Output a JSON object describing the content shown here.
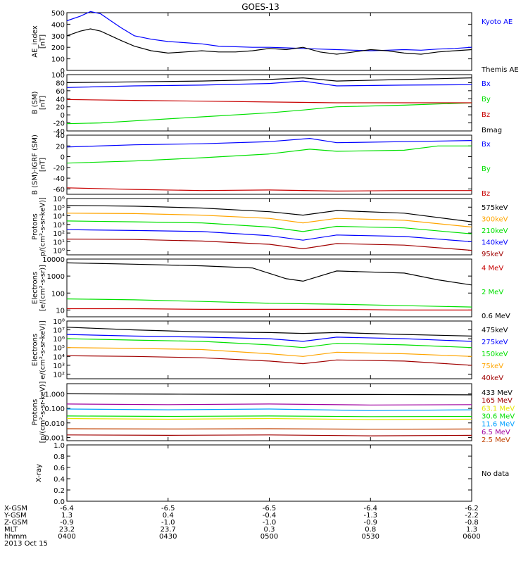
{
  "title": "GOES-13",
  "colors": {
    "black": "#000000",
    "blue": "#0000ff",
    "green": "#00e000",
    "red": "#c80000",
    "orange": "#ffa500",
    "dark_red": "#a00000",
    "yellow": "#e6e600",
    "cyan": "#00a0ff",
    "magenta": "#a000a0",
    "brown": "#c04000"
  },
  "chart_data": [
    {
      "type": "line",
      "id": "ae",
      "ylabel_lines": [
        "AE_index",
        "[nT]"
      ],
      "ylim": [
        0,
        500
      ],
      "log": false,
      "yticks": [
        0,
        100,
        200,
        300,
        400,
        500
      ],
      "ytick_labels": [
        "0",
        "100",
        "200",
        "300",
        "400",
        "500"
      ],
      "series": [
        {
          "name": "Kyoto AE",
          "color": "#0000ff",
          "x": [
            0,
            4,
            7,
            10,
            13,
            16,
            20,
            25,
            30,
            35,
            40,
            45,
            50,
            55,
            60,
            65,
            70,
            75,
            80,
            85,
            90,
            95,
            100,
            105,
            110,
            115,
            120
          ],
          "y": [
            430,
            470,
            510,
            490,
            430,
            370,
            300,
            270,
            250,
            240,
            230,
            210,
            205,
            200,
            200,
            195,
            190,
            185,
            180,
            175,
            170,
            175,
            180,
            175,
            185,
            190,
            200
          ]
        },
        {
          "name": "Themis AE",
          "color": "#000000",
          "x": [
            0,
            4,
            7,
            10,
            13,
            16,
            20,
            25,
            30,
            35,
            40,
            45,
            50,
            55,
            60,
            65,
            70,
            75,
            80,
            85,
            90,
            95,
            100,
            105,
            110,
            115,
            120
          ],
          "y": [
            300,
            340,
            360,
            340,
            300,
            260,
            210,
            170,
            150,
            160,
            170,
            160,
            160,
            170,
            190,
            180,
            200,
            160,
            140,
            160,
            180,
            170,
            150,
            140,
            160,
            170,
            180
          ]
        }
      ]
    },
    {
      "type": "line",
      "id": "bsm",
      "ylabel_lines": [
        "B (SM)",
        "[nT]"
      ],
      "ylim": [
        -40,
        100
      ],
      "log": false,
      "yticks": [
        -40,
        -20,
        0,
        20,
        40,
        60,
        80,
        100
      ],
      "ytick_labels": [
        "-40",
        "-20",
        "0",
        "20",
        "40",
        "60",
        "80",
        "100"
      ],
      "series": [
        {
          "name": "Bx",
          "color": "#0000ff",
          "x": [
            0,
            20,
            40,
            60,
            70,
            80,
            100,
            120
          ],
          "y": [
            68,
            72,
            74,
            78,
            84,
            72,
            74,
            75
          ]
        },
        {
          "name": "By",
          "color": "#00e000",
          "x": [
            0,
            10,
            20,
            40,
            60,
            70,
            80,
            100,
            120
          ],
          "y": [
            -22,
            -20,
            -15,
            -5,
            5,
            12,
            20,
            24,
            30
          ]
        },
        {
          "name": "Bz",
          "color": "#c80000",
          "x": [
            0,
            20,
            40,
            60,
            80,
            100,
            120
          ],
          "y": [
            38,
            36,
            34,
            32,
            30,
            30,
            30
          ]
        },
        {
          "name": "Bmag",
          "color": "#000000",
          "x": [
            0,
            20,
            40,
            60,
            70,
            80,
            100,
            120
          ],
          "y": [
            80,
            82,
            84,
            88,
            92,
            84,
            88,
            92
          ]
        }
      ]
    },
    {
      "type": "line",
      "id": "bigrf",
      "ylabel_lines": [
        "B (SM)-IGRF (SM)",
        "[nT]"
      ],
      "ylim": [
        -70,
        40
      ],
      "log": false,
      "yticks": [
        -60,
        -40,
        -20,
        0,
        20,
        40
      ],
      "ytick_labels": [
        "-60",
        "-40",
        "-20",
        "0",
        "20",
        "40"
      ],
      "series": [
        {
          "name": "Bx",
          "color": "#0000ff",
          "x": [
            0,
            20,
            40,
            60,
            72,
            80,
            100,
            120
          ],
          "y": [
            18,
            22,
            24,
            28,
            34,
            26,
            28,
            30
          ]
        },
        {
          "name": "By",
          "color": "#00e000",
          "x": [
            0,
            20,
            40,
            60,
            72,
            80,
            100,
            110,
            120
          ],
          "y": [
            -12,
            -8,
            -2,
            5,
            14,
            10,
            12,
            20,
            20
          ]
        },
        {
          "name": "Bz",
          "color": "#c80000",
          "x": [
            0,
            20,
            40,
            60,
            80,
            100,
            120
          ],
          "y": [
            -58,
            -61,
            -63,
            -62,
            -64,
            -63,
            -63
          ]
        }
      ]
    },
    {
      "type": "line",
      "id": "protons",
      "ylabel_lines": [
        "Protons",
        "p/(cm²-s-sr-keV)]"
      ],
      "ylim": [
        0.3,
        1000000
      ],
      "log": true,
      "yticks": [
        1,
        10,
        100,
        1000,
        10000,
        100000,
        1000000
      ],
      "ytick_labels": [
        "10⁰",
        "10¹",
        "10²",
        "10³",
        "10⁴",
        "10⁵",
        "10⁶"
      ],
      "series": [
        {
          "name": "575keV",
          "color": "#000000",
          "x": [
            0,
            20,
            40,
            60,
            70,
            80,
            100,
            120
          ],
          "y": [
            160000,
            130000,
            80000,
            30000,
            12000,
            40000,
            20000,
            2000
          ]
        },
        {
          "name": "300keV",
          "color": "#ffa500",
          "x": [
            0,
            20,
            40,
            60,
            70,
            80,
            100,
            120
          ],
          "y": [
            20000,
            18000,
            12000,
            5000,
            1500,
            5000,
            3000,
            500
          ]
        },
        {
          "name": "210keV",
          "color": "#00e000",
          "x": [
            0,
            20,
            40,
            60,
            70,
            80,
            100,
            120
          ],
          "y": [
            2500,
            2000,
            1500,
            500,
            150,
            600,
            400,
            80
          ]
        },
        {
          "name": "140keV",
          "color": "#0000ff",
          "x": [
            0,
            20,
            40,
            60,
            70,
            80,
            100,
            120
          ],
          "y": [
            250,
            200,
            150,
            50,
            15,
            60,
            40,
            10
          ]
        },
        {
          "name": "95keV",
          "color": "#a00000",
          "x": [
            0,
            20,
            40,
            60,
            70,
            80,
            100,
            120
          ],
          "y": [
            20,
            18,
            12,
            5,
            1.5,
            6,
            4,
            1
          ]
        }
      ]
    },
    {
      "type": "line",
      "id": "electrons1",
      "ylabel_lines": [
        "Electrons",
        "[e/(cm²-s-sr)]"
      ],
      "ylim": [
        4,
        10000
      ],
      "log": true,
      "yticks": [
        10,
        100,
        1000,
        10000
      ],
      "ytick_labels": [
        "10",
        "100",
        "1000",
        "10000"
      ],
      "series": [
        {
          "name": "4 MeV",
          "color": "#c80000",
          "x": [
            0,
            20,
            40,
            60,
            80,
            100,
            120
          ],
          "y": [
            12,
            12,
            11,
            11,
            11,
            10,
            10
          ]
        },
        {
          "name": "2 MeV",
          "color": "#00e000",
          "x": [
            0,
            20,
            40,
            60,
            80,
            100,
            120
          ],
          "y": [
            45,
            40,
            32,
            25,
            22,
            18,
            15
          ]
        },
        {
          "name": "0.6 MeV",
          "color": "#000000",
          "x": [
            0,
            20,
            40,
            55,
            65,
            70,
            80,
            100,
            110,
            120
          ],
          "y": [
            6000,
            5000,
            4000,
            3000,
            700,
            500,
            2000,
            1500,
            600,
            300
          ]
        }
      ]
    },
    {
      "type": "line",
      "id": "electrons2",
      "ylabel_lines": [
        "Electrons",
        "e/(cm²-s-sr-keV)]"
      ],
      "ylim": [
        30,
        100000000
      ],
      "log": true,
      "yticks": [
        100,
        1000,
        10000,
        100000,
        1000000,
        10000000,
        100000000
      ],
      "ytick_labels": [
        "10²",
        "10³",
        "10⁴",
        "10⁵",
        "10⁶",
        "10⁷",
        "10⁸"
      ],
      "series": [
        {
          "name": "475keV",
          "color": "#000000",
          "x": [
            0,
            20,
            40,
            60,
            70,
            80,
            100,
            120
          ],
          "y": [
            20000000,
            10000000,
            6000000,
            5000000,
            4000000,
            5000000,
            3000000,
            2000000
          ]
        },
        {
          "name": "275keV",
          "color": "#0000ff",
          "x": [
            0,
            20,
            40,
            60,
            70,
            80,
            100,
            120
          ],
          "y": [
            3000000,
            2000000,
            1500000,
            1000000,
            500000,
            1500000,
            1000000,
            500000
          ]
        },
        {
          "name": "150keV",
          "color": "#00e000",
          "x": [
            0,
            20,
            40,
            60,
            70,
            80,
            100,
            120
          ],
          "y": [
            1000000,
            700000,
            500000,
            200000,
            100000,
            300000,
            200000,
            100000
          ]
        },
        {
          "name": "75keV",
          "color": "#ffa500",
          "x": [
            0,
            20,
            40,
            60,
            70,
            80,
            100,
            120
          ],
          "y": [
            100000,
            80000,
            60000,
            20000,
            10000,
            30000,
            20000,
            10000
          ]
        },
        {
          "name": "40keV",
          "color": "#a00000",
          "x": [
            0,
            20,
            40,
            60,
            70,
            80,
            100,
            120
          ],
          "y": [
            12000,
            10000,
            7000,
            3000,
            1500,
            4000,
            3000,
            1000
          ]
        }
      ]
    },
    {
      "type": "line",
      "id": "hiprotons",
      "ylabel_lines": [
        "Protons",
        "[p/(cm²-s-sr-keV)]"
      ],
      "ylim": [
        0.0006,
        5
      ],
      "log": true,
      "yticks": [
        0.001,
        0.01,
        0.1,
        1
      ],
      "ytick_labels": [
        "0.001",
        "0.010",
        "0.100",
        "1.000"
      ],
      "series": [
        {
          "name": "433 MeV",
          "color": "#000000",
          "x": [
            0,
            30,
            60,
            90,
            120
          ],
          "y": [
            1,
            0.95,
            0.9,
            0.9,
            0.85
          ]
        },
        {
          "name": "165 MeV",
          "color": "#a00000",
          "x": [
            0,
            30,
            60,
            90,
            120
          ],
          "y": [
            0.0015,
            0.0014,
            0.0015,
            0.0013,
            0.0014
          ]
        },
        {
          "name": "63.1 MeV",
          "color": "#e6e600",
          "x": [
            0,
            30,
            60,
            90,
            120
          ],
          "y": [
            0.02,
            0.018,
            0.02,
            0.017,
            0.018
          ]
        },
        {
          "name": "30.6 MeV",
          "color": "#00e000",
          "x": [
            0,
            30,
            60,
            90,
            120
          ],
          "y": [
            0.03,
            0.028,
            0.03,
            0.027,
            0.028
          ]
        },
        {
          "name": "11.6 MeV",
          "color": "#00a0ff",
          "x": [
            0,
            30,
            60,
            90,
            120
          ],
          "y": [
            0.09,
            0.08,
            0.09,
            0.07,
            0.08
          ]
        },
        {
          "name": "6.5 MeV",
          "color": "#a000a0",
          "x": [
            0,
            30,
            60,
            90,
            120
          ],
          "y": [
            0.2,
            0.18,
            0.2,
            0.17,
            0.18
          ]
        },
        {
          "name": "2.5 MeV",
          "color": "#c04000",
          "x": [
            0,
            30,
            60,
            90,
            120
          ],
          "y": [
            0.004,
            0.0038,
            0.004,
            0.0037,
            0.0038
          ]
        }
      ]
    },
    {
      "type": "line",
      "id": "xray",
      "ylabel_lines": [
        "X-ray"
      ],
      "ylim": [
        0,
        1
      ],
      "log": false,
      "yticks": [
        0,
        0.2,
        0.4,
        0.6,
        0.8,
        1.0
      ],
      "ytick_labels": [
        "0.0",
        "0.2",
        "0.4",
        "0.6",
        "0.8",
        "1.0"
      ],
      "note": "No data",
      "series": []
    }
  ],
  "orbit": {
    "row_labels": [
      "X-GSM",
      "Y-GSM",
      "Z-GSM",
      "MLT",
      "hhmm"
    ],
    "ticks": [
      {
        "minutes": 0,
        "values": [
          "-6.4",
          "1.3",
          "-0.9",
          "23.2",
          "0400"
        ]
      },
      {
        "minutes": 30,
        "values": [
          "-6.5",
          "0.4",
          "-1.0",
          "23.7",
          "0430"
        ]
      },
      {
        "minutes": 60,
        "values": [
          "-6.5",
          "-0.4",
          "-1.0",
          "0.3",
          "0500"
        ]
      },
      {
        "minutes": 90,
        "values": [
          "-6.4",
          "-1.3",
          "-0.9",
          "0.8",
          "0530"
        ]
      },
      {
        "minutes": 120,
        "values": [
          "-6.2",
          "-2.2",
          "-0.8",
          "1.3",
          "0600"
        ]
      }
    ],
    "date": "2013 Oct 15"
  }
}
